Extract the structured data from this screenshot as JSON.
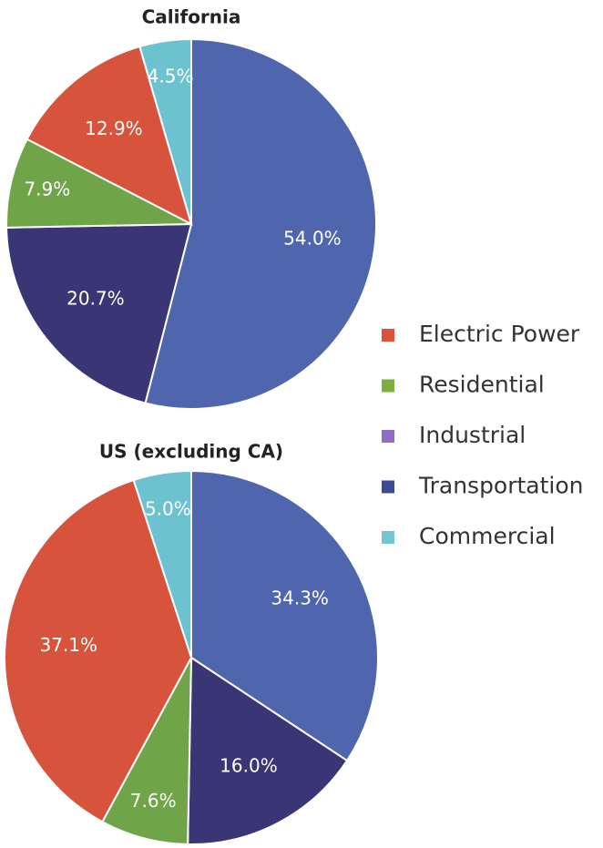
{
  "chart_data": [
    {
      "type": "pie",
      "title": "California",
      "categories": [
        "Transportation",
        "Industrial",
        "Residential",
        "Electric Power",
        "Commercial"
      ],
      "values": [
        54.0,
        20.7,
        7.9,
        12.9,
        4.5
      ],
      "value_labels": [
        "54.0%",
        "20.7%",
        "7.9%",
        "12.9%",
        "4.5%"
      ],
      "colors": [
        "#4f66ae",
        "#3a3676",
        "#6fa548",
        "#d8533b",
        "#6cc3cf"
      ]
    },
    {
      "type": "pie",
      "title": "US (excluding CA)",
      "categories": [
        "Transportation",
        "Industrial",
        "Residential",
        "Electric Power",
        "Commercial"
      ],
      "values": [
        34.3,
        16.0,
        7.6,
        37.1,
        5.0
      ],
      "value_labels": [
        "34.3%",
        "16.0%",
        "7.6%",
        "37.1%",
        "5.0%"
      ],
      "colors": [
        "#4f66ae",
        "#3a3676",
        "#6fa548",
        "#d8533b",
        "#6cc3cf"
      ]
    }
  ],
  "legend": {
    "labels": [
      "Electric Power",
      "Residential",
      "Industrial",
      "Transportation",
      "Commercial"
    ],
    "colors": [
      "#e0503a",
      "#7dae3f",
      "#8f6dc4",
      "#3c4b97",
      "#71c7d2"
    ]
  }
}
